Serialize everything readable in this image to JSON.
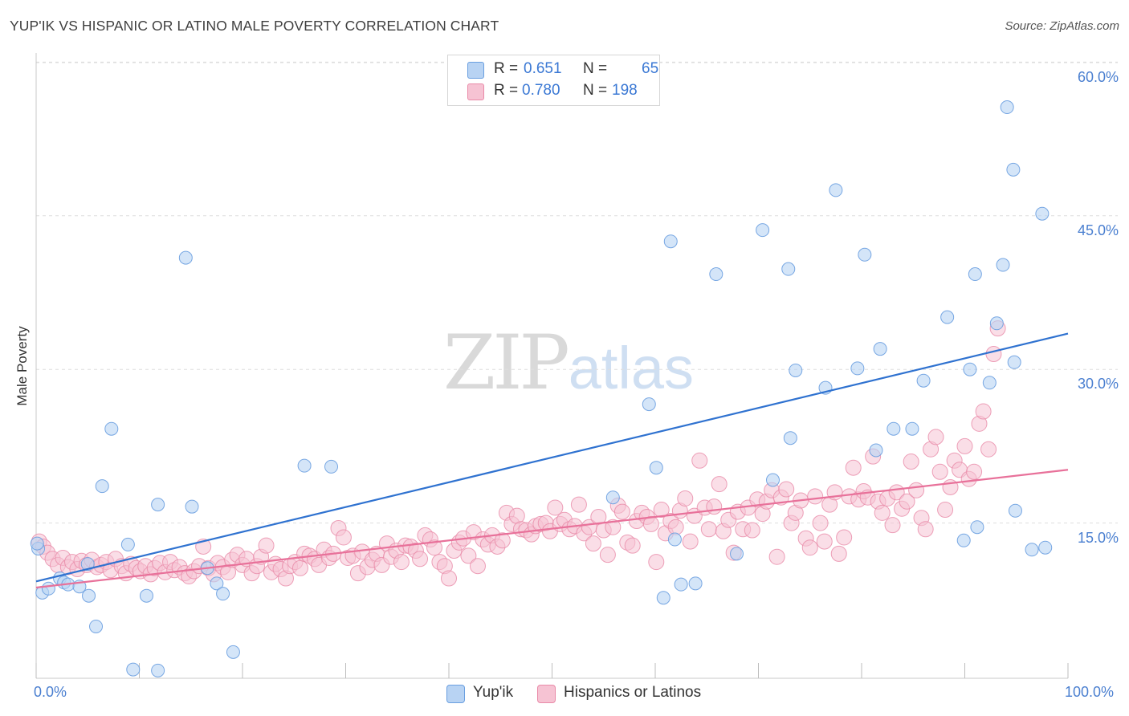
{
  "title": "YUP'IK VS HISPANIC OR LATINO MALE POVERTY CORRELATION CHART",
  "source": "Source: ZipAtlas.com",
  "watermark": {
    "zip": "ZIP",
    "atlas": "atlas"
  },
  "legend": {
    "rows": [
      {
        "r_label": "R =",
        "r_value": "0.651",
        "n_label": "N =",
        "n_value": "65"
      },
      {
        "r_label": "R =",
        "r_value": "0.780",
        "n_label": "N =",
        "n_value": "198"
      }
    ]
  },
  "colors": {
    "blue_fill": "#b8d3f3",
    "blue_stroke": "#6a9fe0",
    "blue_line": "#2f72d0",
    "pink_fill": "#f6c3d3",
    "pink_stroke": "#e98aa8",
    "pink_line": "#e8719a",
    "tick_text": "#4a7fd0",
    "grid": "#dddddd"
  },
  "chart_data": {
    "type": "scatter",
    "title": "YUP'IK VS HISPANIC OR LATINO MALE POVERTY CORRELATION CHART",
    "xlabel": "",
    "ylabel": "Male Poverty",
    "xlim": [
      0,
      100
    ],
    "ylim": [
      0,
      60
    ],
    "y_ticks": [
      "15.0%",
      "30.0%",
      "45.0%",
      "60.0%"
    ],
    "y_tick_values": [
      15,
      30,
      45,
      60
    ],
    "x_ticks": [
      "0.0%",
      "100.0%"
    ],
    "grid": true,
    "legend_position": "top-center",
    "series": [
      {
        "name": "Yup'ik",
        "r": 0.651,
        "n": 65,
        "trend": {
          "x": [
            0,
            100
          ],
          "y": [
            9.3,
            33.5
          ]
        },
        "points": [
          [
            0.2,
            12.5
          ],
          [
            0.6,
            8.2
          ],
          [
            1.2,
            8.6
          ],
          [
            2.3,
            9.6
          ],
          [
            2.7,
            9.2
          ],
          [
            3.1,
            9.0
          ],
          [
            4.2,
            8.8
          ],
          [
            5.0,
            11.0
          ],
          [
            5.1,
            7.9
          ],
          [
            5.8,
            4.9
          ],
          [
            6.4,
            18.6
          ],
          [
            7.3,
            24.2
          ],
          [
            8.9,
            12.9
          ],
          [
            9.4,
            0.7
          ],
          [
            10.7,
            7.9
          ],
          [
            11.8,
            0.6
          ],
          [
            11.8,
            16.8
          ],
          [
            14.5,
            40.9
          ],
          [
            15.1,
            16.6
          ],
          [
            16.6,
            10.6
          ],
          [
            17.5,
            9.1
          ],
          [
            18.1,
            8.1
          ],
          [
            19.1,
            2.4
          ],
          [
            26.0,
            20.6
          ],
          [
            28.6,
            20.5
          ],
          [
            55.9,
            17.5
          ],
          [
            59.4,
            26.6
          ],
          [
            61.5,
            42.5
          ],
          [
            62.5,
            9.0
          ],
          [
            60.1,
            20.4
          ],
          [
            60.8,
            7.7
          ],
          [
            61.9,
            13.4
          ],
          [
            63.9,
            9.1
          ],
          [
            65.9,
            39.3
          ],
          [
            67.9,
            12.0
          ],
          [
            70.4,
            43.6
          ],
          [
            71.4,
            19.2
          ],
          [
            72.9,
            39.8
          ],
          [
            73.1,
            23.3
          ],
          [
            73.6,
            29.9
          ],
          [
            76.5,
            28.2
          ],
          [
            77.5,
            47.5
          ],
          [
            79.6,
            30.1
          ],
          [
            80.3,
            41.2
          ],
          [
            81.8,
            32.0
          ],
          [
            81.4,
            22.1
          ],
          [
            83.1,
            24.2
          ],
          [
            84.9,
            24.2
          ],
          [
            86.0,
            28.9
          ],
          [
            88.3,
            35.1
          ],
          [
            89.9,
            13.3
          ],
          [
            90.5,
            30.0
          ],
          [
            91.0,
            39.3
          ],
          [
            91.2,
            14.6
          ],
          [
            92.4,
            28.7
          ],
          [
            93.1,
            34.5
          ],
          [
            93.7,
            40.2
          ],
          [
            94.1,
            55.6
          ],
          [
            94.7,
            49.5
          ],
          [
            94.8,
            30.7
          ],
          [
            94.9,
            16.2
          ],
          [
            97.5,
            45.2
          ],
          [
            97.8,
            12.6
          ],
          [
            96.5,
            12.4
          ],
          [
            0.1,
            13.0
          ]
        ]
      },
      {
        "name": "Hispanics or Latinos",
        "r": 0.78,
        "n": 198,
        "trend": {
          "x": [
            0,
            100
          ],
          "y": [
            8.7,
            20.2
          ]
        },
        "points": [
          [
            0.3,
            13.2
          ],
          [
            0.7,
            12.7
          ],
          [
            1.1,
            12.1
          ],
          [
            1.6,
            11.5
          ],
          [
            2.1,
            10.9
          ],
          [
            2.6,
            11.6
          ],
          [
            3.1,
            10.7
          ],
          [
            3.5,
            11.2
          ],
          [
            4.0,
            10.5
          ],
          [
            4.4,
            11.3
          ],
          [
            4.9,
            10.9
          ],
          [
            5.4,
            11.4
          ],
          [
            5.9,
            10.7
          ],
          [
            6.3,
            10.9
          ],
          [
            6.8,
            11.2
          ],
          [
            7.2,
            10.4
          ],
          [
            7.7,
            11.5
          ],
          [
            8.3,
            10.8
          ],
          [
            8.7,
            10.1
          ],
          [
            9.2,
            11.0
          ],
          [
            9.7,
            10.6
          ],
          [
            10.1,
            10.3
          ],
          [
            10.6,
            10.8
          ],
          [
            11.1,
            10.0
          ],
          [
            11.5,
            10.6
          ],
          [
            12.0,
            11.1
          ],
          [
            12.5,
            10.2
          ],
          [
            13.0,
            11.2
          ],
          [
            13.4,
            10.4
          ],
          [
            13.9,
            10.7
          ],
          [
            14.4,
            10.1
          ],
          [
            14.8,
            9.8
          ],
          [
            15.3,
            10.3
          ],
          [
            15.8,
            10.8
          ],
          [
            16.2,
            12.7
          ],
          [
            16.7,
            10.6
          ],
          [
            17.2,
            10.0
          ],
          [
            17.6,
            11.1
          ],
          [
            18.1,
            10.7
          ],
          [
            18.6,
            10.2
          ],
          [
            19.0,
            11.4
          ],
          [
            19.5,
            11.9
          ],
          [
            20.0,
            10.9
          ],
          [
            20.4,
            11.5
          ],
          [
            20.9,
            10.1
          ],
          [
            21.4,
            10.8
          ],
          [
            21.8,
            11.7
          ],
          [
            22.3,
            12.8
          ],
          [
            22.8,
            10.2
          ],
          [
            23.2,
            11.0
          ],
          [
            23.7,
            10.5
          ],
          [
            24.2,
            9.6
          ],
          [
            24.6,
            10.8
          ],
          [
            25.1,
            11.2
          ],
          [
            25.6,
            10.6
          ],
          [
            26.0,
            12.0
          ],
          [
            26.5,
            11.8
          ],
          [
            27.0,
            11.5
          ],
          [
            27.4,
            10.9
          ],
          [
            27.9,
            12.4
          ],
          [
            28.4,
            11.6
          ],
          [
            28.8,
            12.0
          ],
          [
            29.3,
            14.5
          ],
          [
            29.8,
            13.6
          ],
          [
            30.2,
            11.6
          ],
          [
            30.7,
            11.8
          ],
          [
            31.2,
            10.1
          ],
          [
            31.6,
            12.2
          ],
          [
            32.1,
            10.7
          ],
          [
            32.6,
            11.4
          ],
          [
            33.0,
            12.0
          ],
          [
            33.5,
            10.9
          ],
          [
            34.0,
            13.0
          ],
          [
            34.4,
            11.7
          ],
          [
            34.9,
            12.3
          ],
          [
            35.4,
            11.2
          ],
          [
            35.8,
            12.8
          ],
          [
            36.3,
            12.7
          ],
          [
            36.8,
            12.3
          ],
          [
            37.2,
            11.5
          ],
          [
            37.7,
            13.8
          ],
          [
            38.2,
            13.4
          ],
          [
            38.6,
            12.6
          ],
          [
            39.1,
            11.2
          ],
          [
            39.6,
            10.8
          ],
          [
            40.0,
            9.6
          ],
          [
            40.5,
            12.3
          ],
          [
            41.0,
            13.1
          ],
          [
            41.4,
            13.5
          ],
          [
            41.9,
            11.8
          ],
          [
            42.4,
            14.1
          ],
          [
            42.8,
            10.8
          ],
          [
            43.3,
            13.4
          ],
          [
            43.8,
            12.9
          ],
          [
            44.2,
            13.8
          ],
          [
            44.7,
            12.7
          ],
          [
            45.2,
            13.3
          ],
          [
            45.6,
            16.0
          ],
          [
            46.1,
            14.9
          ],
          [
            46.6,
            15.7
          ],
          [
            47.0,
            14.4
          ],
          [
            47.5,
            14.3
          ],
          [
            48.0,
            13.9
          ],
          [
            48.4,
            14.7
          ],
          [
            48.9,
            14.9
          ],
          [
            49.4,
            15.0
          ],
          [
            49.8,
            14.2
          ],
          [
            50.3,
            16.5
          ],
          [
            50.8,
            14.9
          ],
          [
            51.2,
            15.3
          ],
          [
            51.7,
            14.4
          ],
          [
            52.2,
            14.7
          ],
          [
            52.6,
            16.8
          ],
          [
            53.1,
            14.0
          ],
          [
            53.6,
            14.6
          ],
          [
            54.0,
            13.0
          ],
          [
            54.5,
            15.6
          ],
          [
            55.0,
            14.3
          ],
          [
            55.4,
            11.9
          ],
          [
            55.9,
            14.6
          ],
          [
            56.4,
            16.7
          ],
          [
            56.8,
            16.1
          ],
          [
            57.3,
            13.1
          ],
          [
            57.8,
            12.8
          ],
          [
            58.2,
            15.2
          ],
          [
            58.7,
            16.0
          ],
          [
            59.2,
            15.6
          ],
          [
            59.6,
            14.9
          ],
          [
            60.1,
            11.2
          ],
          [
            60.6,
            16.3
          ],
          [
            61.0,
            14.0
          ],
          [
            61.5,
            15.2
          ],
          [
            62.0,
            14.6
          ],
          [
            62.4,
            16.2
          ],
          [
            62.9,
            17.4
          ],
          [
            63.4,
            13.2
          ],
          [
            63.8,
            15.7
          ],
          [
            64.3,
            21.1
          ],
          [
            64.8,
            16.5
          ],
          [
            65.2,
            14.4
          ],
          [
            65.7,
            16.6
          ],
          [
            66.2,
            18.8
          ],
          [
            66.6,
            14.2
          ],
          [
            67.1,
            15.3
          ],
          [
            67.6,
            12.1
          ],
          [
            68.0,
            16.1
          ],
          [
            68.5,
            14.4
          ],
          [
            69.0,
            16.5
          ],
          [
            69.4,
            14.3
          ],
          [
            69.9,
            17.3
          ],
          [
            70.4,
            15.9
          ],
          [
            70.8,
            17.1
          ],
          [
            71.3,
            18.2
          ],
          [
            71.8,
            11.7
          ],
          [
            72.2,
            17.5
          ],
          [
            72.7,
            18.3
          ],
          [
            73.2,
            15.0
          ],
          [
            73.6,
            16.0
          ],
          [
            74.1,
            17.2
          ],
          [
            74.6,
            13.5
          ],
          [
            75.0,
            12.6
          ],
          [
            75.5,
            17.6
          ],
          [
            76.0,
            15.0
          ],
          [
            76.4,
            13.2
          ],
          [
            76.9,
            16.8
          ],
          [
            77.4,
            18.0
          ],
          [
            77.8,
            12.0
          ],
          [
            78.3,
            13.6
          ],
          [
            78.8,
            17.6
          ],
          [
            79.2,
            20.4
          ],
          [
            79.7,
            17.3
          ],
          [
            80.2,
            18.1
          ],
          [
            80.6,
            17.5
          ],
          [
            81.1,
            21.5
          ],
          [
            81.6,
            17.1
          ],
          [
            82.0,
            16.0
          ],
          [
            82.5,
            17.4
          ],
          [
            83.0,
            14.8
          ],
          [
            83.4,
            18.0
          ],
          [
            83.9,
            16.4
          ],
          [
            84.4,
            17.1
          ],
          [
            84.8,
            21.0
          ],
          [
            85.3,
            18.2
          ],
          [
            85.8,
            15.5
          ],
          [
            86.2,
            14.4
          ],
          [
            86.7,
            22.2
          ],
          [
            87.2,
            23.4
          ],
          [
            87.6,
            20.0
          ],
          [
            88.1,
            16.3
          ],
          [
            88.6,
            18.5
          ],
          [
            89.0,
            21.1
          ],
          [
            89.5,
            20.2
          ],
          [
            90.0,
            22.5
          ],
          [
            90.4,
            19.3
          ],
          [
            90.9,
            20.0
          ],
          [
            91.4,
            24.7
          ],
          [
            91.8,
            25.9
          ],
          [
            92.3,
            22.2
          ],
          [
            92.8,
            31.5
          ],
          [
            93.2,
            34.0
          ]
        ]
      }
    ]
  },
  "bottom_legend": [
    {
      "label": "Yup'ik"
    },
    {
      "label": "Hispanics or Latinos"
    }
  ]
}
